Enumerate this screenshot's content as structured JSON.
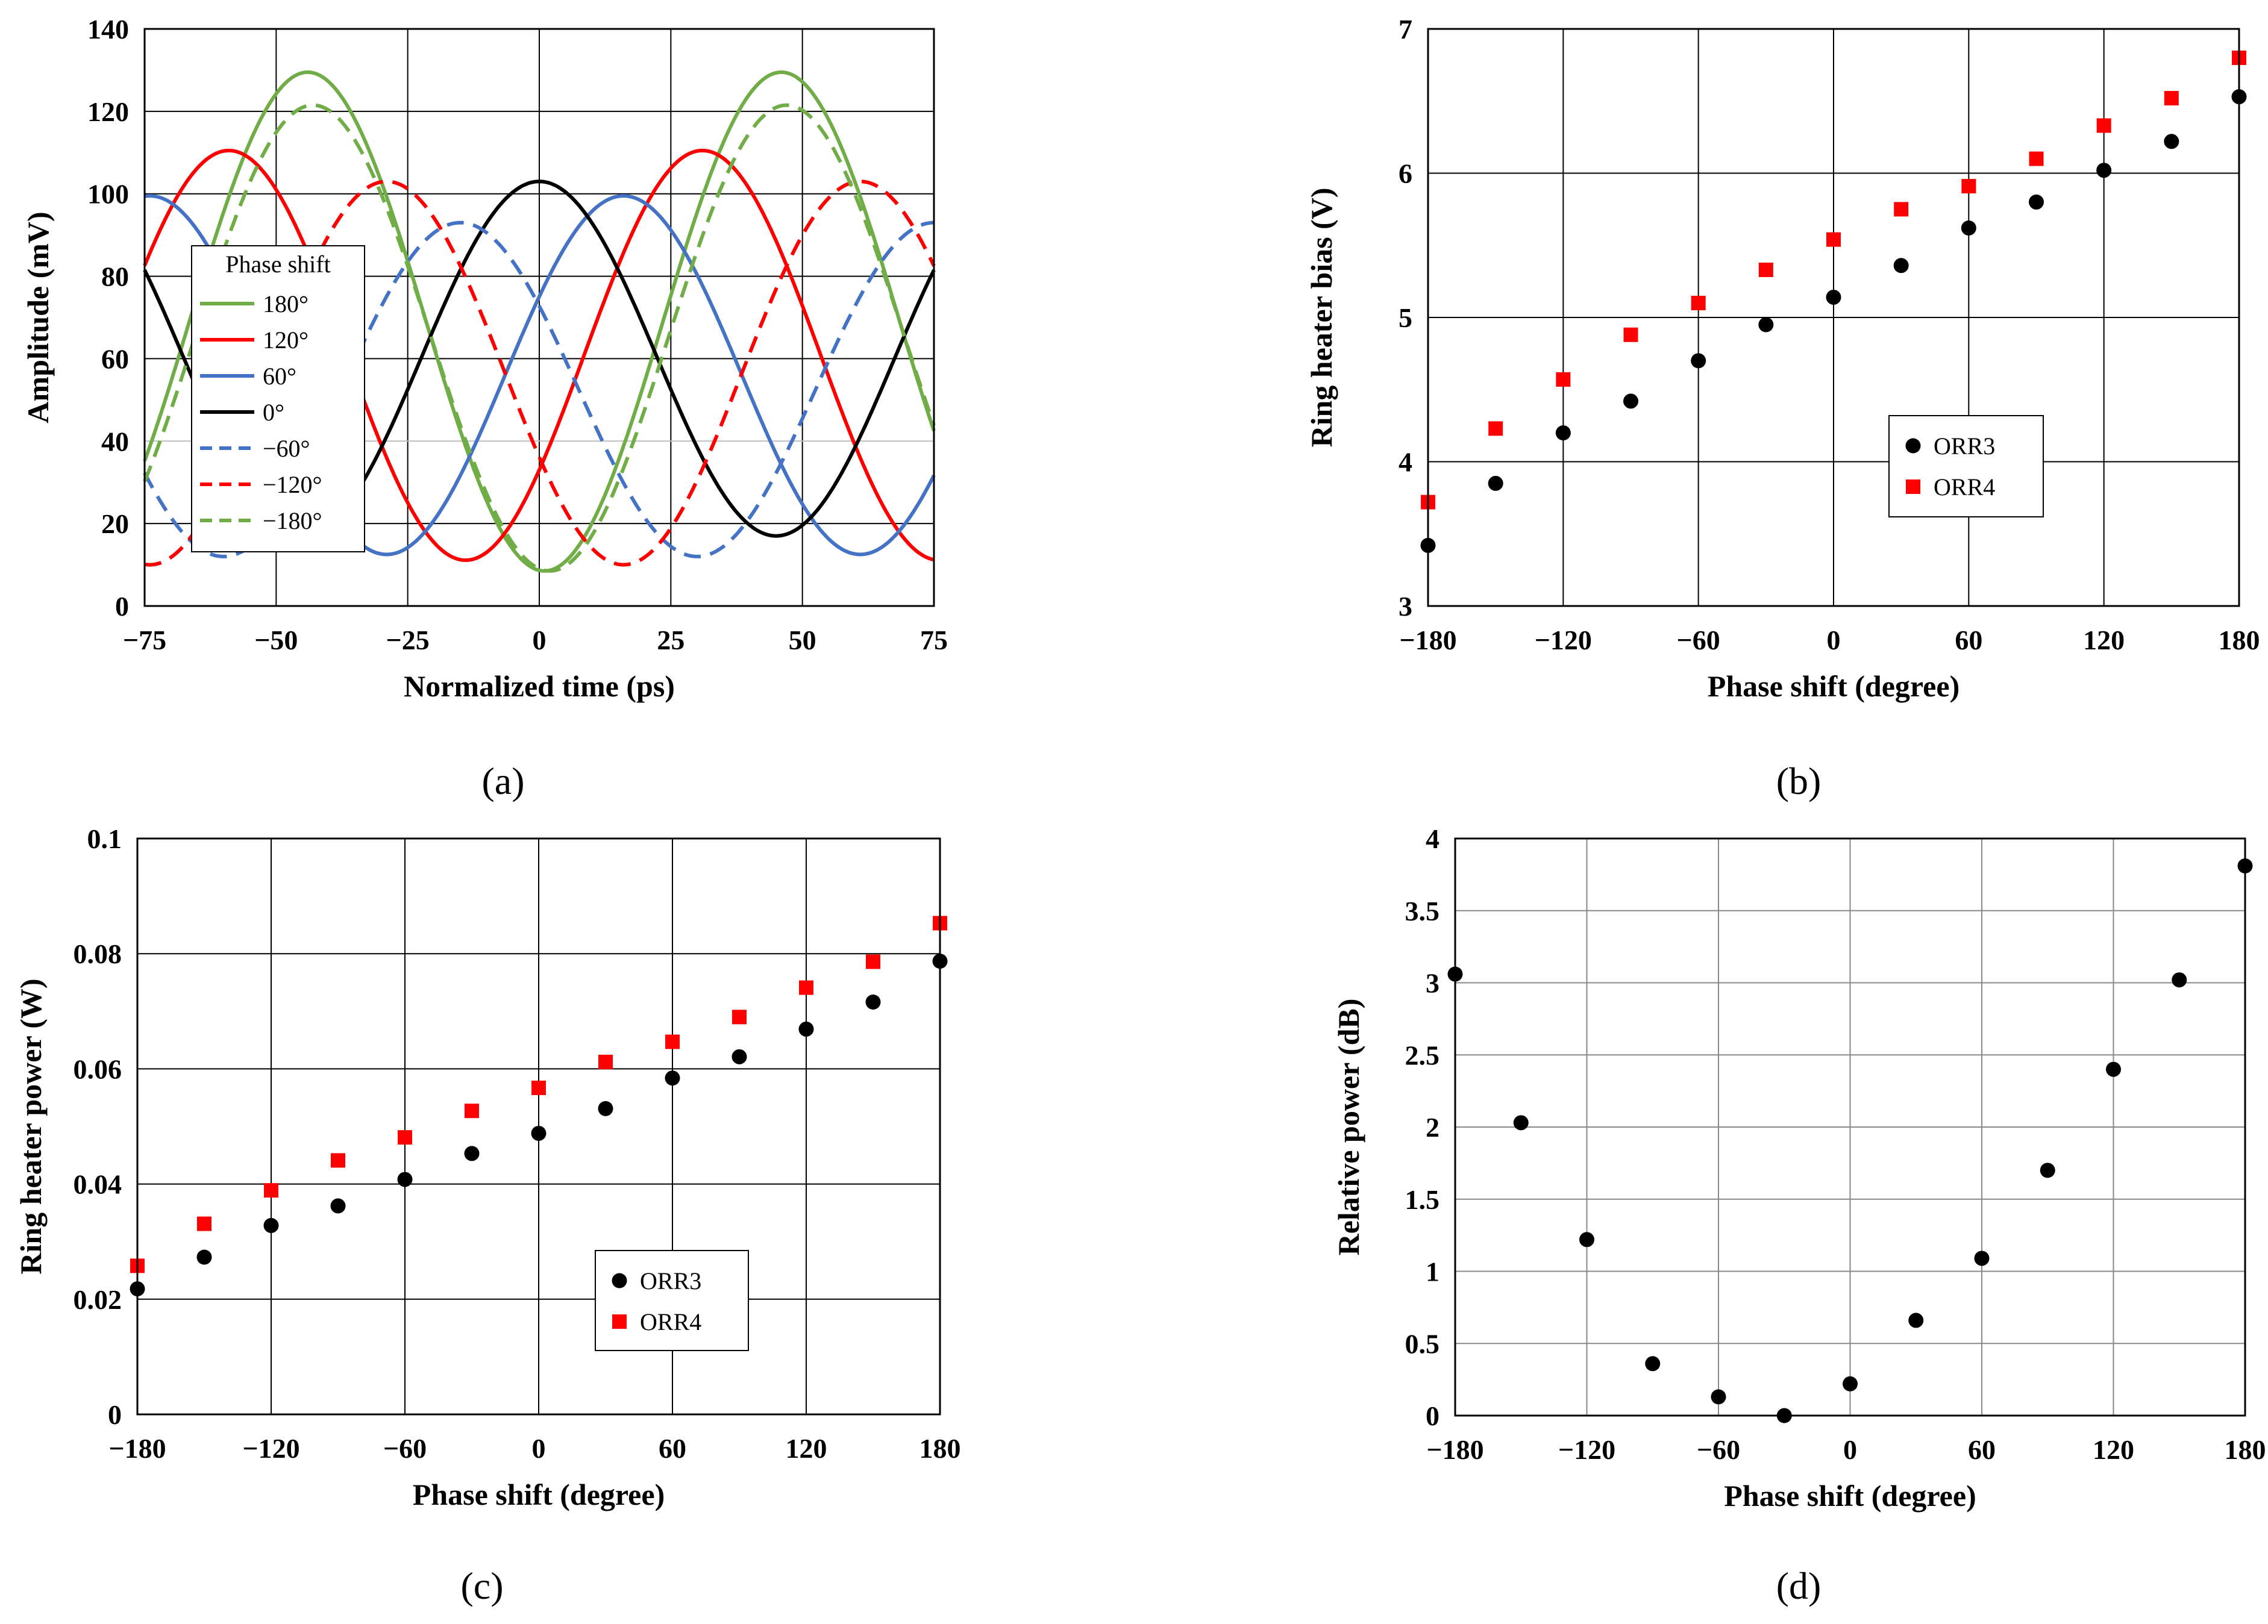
{
  "chart_data": [
    {
      "id": "a",
      "type": "line",
      "panel_label": "(a)",
      "xlabel": "Normalized time (ps)",
      "ylabel": "Amplitude (mV)",
      "xlim": [
        -75,
        75
      ],
      "ylim": [
        0,
        140
      ],
      "xticks": [
        "−75",
        "−50",
        "−25",
        "0",
        "25",
        "50",
        "75"
      ],
      "yticks": [
        "0",
        "20",
        "40",
        "60",
        "80",
        "100",
        "120",
        "140"
      ],
      "legend_title": "Phase shift",
      "legend_position": "left",
      "period_ps": 90,
      "series": [
        {
          "name": "180°",
          "color": "#70ad47",
          "dash": "solid",
          "mean": 69.0,
          "amp": 60.5,
          "peak_t": 46
        },
        {
          "name": "120°",
          "color": "#ff0000",
          "dash": "solid",
          "mean": 60.8,
          "amp": 49.7,
          "peak_t": 31
        },
        {
          "name": "60°",
          "color": "#4472c4",
          "dash": "solid",
          "mean": 56.0,
          "amp": 43.5,
          "peak_t": 16
        },
        {
          "name": "0°",
          "color": "#000000",
          "dash": "solid",
          "mean": 60.0,
          "amp": 43.0,
          "peak_t": 0
        },
        {
          "name": "−60°",
          "color": "#4472c4",
          "dash": "dashed",
          "mean": 52.5,
          "amp": 40.5,
          "peak_t": -15
        },
        {
          "name": "−120°",
          "color": "#ff0000",
          "dash": "dashed",
          "mean": 56.5,
          "amp": 46.5,
          "peak_t": -29
        },
        {
          "name": "−180°",
          "color": "#70ad47",
          "dash": "dashed",
          "mean": 65.0,
          "amp": 56.5,
          "peak_t": -43
        }
      ]
    },
    {
      "id": "b",
      "type": "scatter",
      "panel_label": "(b)",
      "xlabel": "Phase shift (degree)",
      "ylabel": "Ring heater bias (V)",
      "xlim": [
        -180,
        180
      ],
      "ylim": [
        3,
        7
      ],
      "xticks": [
        "−180",
        "−120",
        "−60",
        "0",
        "60",
        "120",
        "180"
      ],
      "yticks": [
        "3",
        "4",
        "5",
        "6",
        "7"
      ],
      "legend_position": "center-right",
      "x": [
        -180,
        -150,
        -120,
        -90,
        -60,
        -30,
        0,
        30,
        60,
        90,
        120,
        150,
        180
      ],
      "series": [
        {
          "name": "ORR3",
          "marker": "circle",
          "color": "#000000",
          "values": [
            3.42,
            3.85,
            4.2,
            4.42,
            4.7,
            4.95,
            5.14,
            5.36,
            5.62,
            5.8,
            6.02,
            6.22,
            6.53
          ]
        },
        {
          "name": "ORR4",
          "marker": "square",
          "color": "#ff0000",
          "values": [
            3.72,
            4.23,
            4.57,
            4.88,
            5.1,
            5.33,
            5.54,
            5.75,
            5.91,
            6.1,
            6.33,
            6.52,
            6.8
          ]
        }
      ]
    },
    {
      "id": "c",
      "type": "scatter",
      "panel_label": "(c)",
      "xlabel": "Phase shift (degree)",
      "ylabel": "Ring heater power (W)",
      "xlim": [
        -180,
        180
      ],
      "ylim": [
        0,
        0.1
      ],
      "xticks": [
        "−180",
        "−120",
        "−60",
        "0",
        "60",
        "120",
        "180"
      ],
      "yticks": [
        "0",
        "0.02",
        "0.04",
        "0.06",
        "0.08",
        "0.1"
      ],
      "legend_position": "bottom-center",
      "x": [
        -180,
        -150,
        -120,
        -90,
        -60,
        -30,
        0,
        30,
        60,
        90,
        120,
        150,
        180
      ],
      "series": [
        {
          "name": "ORR3",
          "marker": "circle",
          "color": "#000000",
          "values": [
            0.0218,
            0.0273,
            0.0328,
            0.0362,
            0.0408,
            0.0453,
            0.0488,
            0.0531,
            0.0584,
            0.0621,
            0.0669,
            0.0716,
            0.0787
          ]
        },
        {
          "name": "ORR4",
          "marker": "square",
          "color": "#ff0000",
          "values": [
            0.0258,
            0.0331,
            0.0389,
            0.0441,
            0.0481,
            0.0527,
            0.0567,
            0.0612,
            0.0647,
            0.069,
            0.0741,
            0.0786,
            0.0853
          ]
        }
      ]
    },
    {
      "id": "d",
      "type": "scatter",
      "panel_label": "(d)",
      "xlabel": "Phase shift (degree)",
      "ylabel": "Relative power (dB)",
      "xlim": [
        -180,
        180
      ],
      "ylim": [
        0,
        4
      ],
      "xticks": [
        "−180",
        "−120",
        "−60",
        "0",
        "60",
        "120",
        "180"
      ],
      "yticks": [
        "0",
        "0.5",
        "1",
        "1.5",
        "2",
        "2.5",
        "3",
        "3.5",
        "4"
      ],
      "x": [
        -180,
        -150,
        -120,
        -90,
        -60,
        -30,
        0,
        30,
        60,
        90,
        120,
        150,
        180
      ],
      "series": [
        {
          "name": "Relative power",
          "marker": "circle",
          "color": "#000000",
          "values": [
            3.06,
            2.03,
            1.22,
            0.36,
            0.13,
            0.0,
            0.22,
            0.66,
            1.09,
            1.7,
            2.4,
            3.02,
            3.81
          ]
        }
      ]
    }
  ]
}
